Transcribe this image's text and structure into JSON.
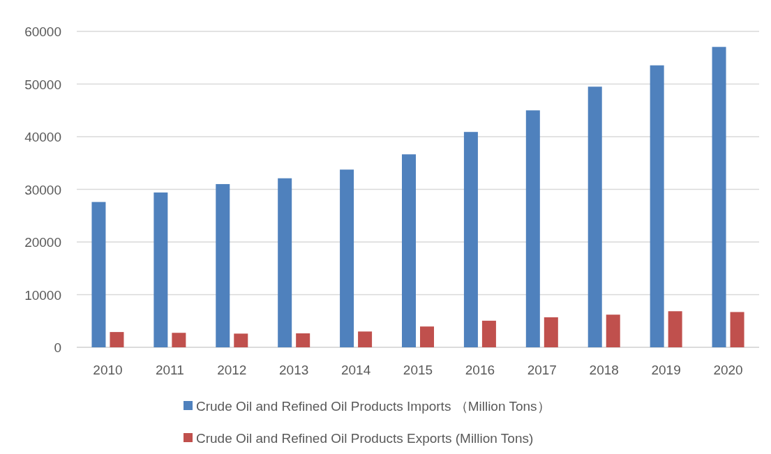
{
  "chart_data": {
    "type": "bar",
    "categories": [
      "2010",
      "2011",
      "2012",
      "2013",
      "2014",
      "2015",
      "2016",
      "2017",
      "2018",
      "2019",
      "2020"
    ],
    "series": [
      {
        "name": "Crude Oil and Refined Oil Products Imports （Million Tons）",
        "color": "#4f81bd",
        "values": [
          27600,
          29400,
          31000,
          32100,
          33750,
          36650,
          40900,
          45000,
          49500,
          53550,
          57050
        ]
      },
      {
        "name": "Crude Oil and Refined Oil Products Exports (Million Tons)",
        "color": "#c0504d",
        "values": [
          2900,
          2750,
          2600,
          2650,
          3000,
          3950,
          5050,
          5700,
          6200,
          6850,
          6700
        ]
      }
    ],
    "ylim": [
      0,
      60000
    ],
    "yticks": [
      0,
      10000,
      20000,
      30000,
      40000,
      50000,
      60000
    ],
    "grid": "y",
    "legend": "bottom"
  }
}
